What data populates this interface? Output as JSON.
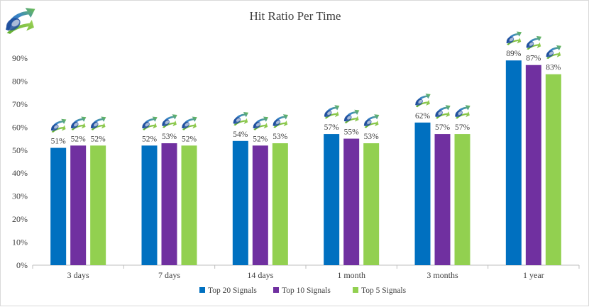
{
  "chart_data": {
    "type": "bar",
    "title": "Hit Ratio Per Time",
    "categories": [
      "3 days",
      "7 days",
      "14 days",
      "1 month",
      "3 months",
      "1 year"
    ],
    "series": [
      {
        "name": "Top 20 Signals",
        "values": [
          51,
          52,
          54,
          57,
          62,
          89
        ],
        "color": "#0070c0"
      },
      {
        "name": "Top 10 Signals",
        "values": [
          52,
          53,
          52,
          55,
          57,
          87
        ],
        "color": "#7030a0"
      },
      {
        "name": "Top 5 Signals",
        "values": [
          52,
          52,
          53,
          53,
          57,
          83
        ],
        "color": "#92d050"
      }
    ],
    "value_suffix": "%",
    "ylim": [
      0,
      90
    ],
    "yticks": [
      "0%",
      "10%",
      "20%",
      "30%",
      "40%",
      "50%",
      "60%",
      "70%",
      "80%",
      "90%"
    ],
    "grid": false,
    "legend_position": "bottom",
    "data_labels": true,
    "logo_icon": "arrow-swoosh-logo-icon"
  }
}
